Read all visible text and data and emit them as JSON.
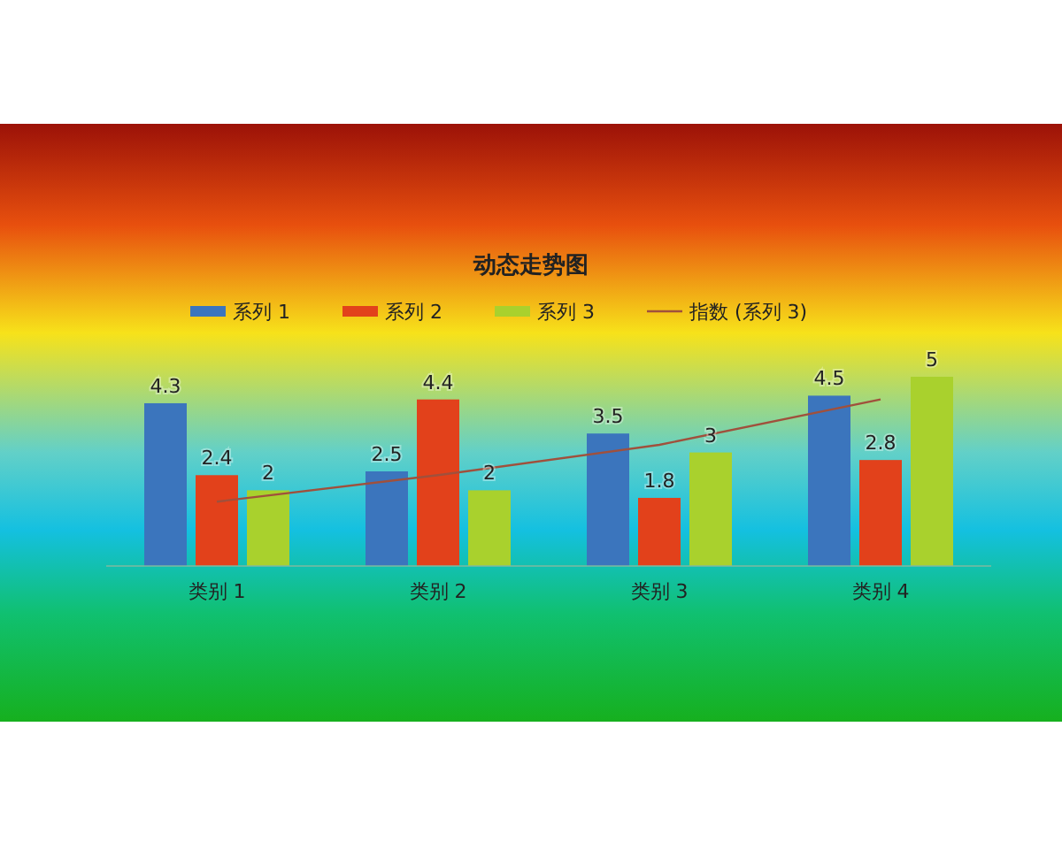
{
  "chart_data": {
    "type": "bar",
    "title": "动态走势图",
    "categories": [
      "类别 1",
      "类别 2",
      "类别 3",
      "类别 4"
    ],
    "ylim": [
      0,
      5
    ],
    "legend": "top",
    "series": [
      {
        "name": "系列 1",
        "color": "#3b75bd",
        "values": [
          4.3,
          2.5,
          3.5,
          4.5
        ],
        "value_labels": [
          "4.3",
          "2.5",
          "3.5",
          "4.5"
        ]
      },
      {
        "name": "系列 2",
        "color": "#e2411b",
        "values": [
          2.4,
          4.4,
          1.8,
          2.8
        ],
        "value_labels": [
          "2.4",
          "4.4",
          "1.8",
          "2.8"
        ]
      },
      {
        "name": "系列 3",
        "color": "#a9d12d",
        "values": [
          2,
          2,
          3,
          5
        ],
        "value_labels": [
          "2",
          "2",
          "3",
          "5"
        ]
      },
      {
        "name": "指数 (系列 3)",
        "type": "line",
        "color": "#a0503c",
        "x": [
          "类别 1",
          "类别 2",
          "类别 3",
          "类别 4"
        ],
        "values": [
          1.7,
          2.4,
          3.2,
          4.4
        ]
      }
    ]
  }
}
